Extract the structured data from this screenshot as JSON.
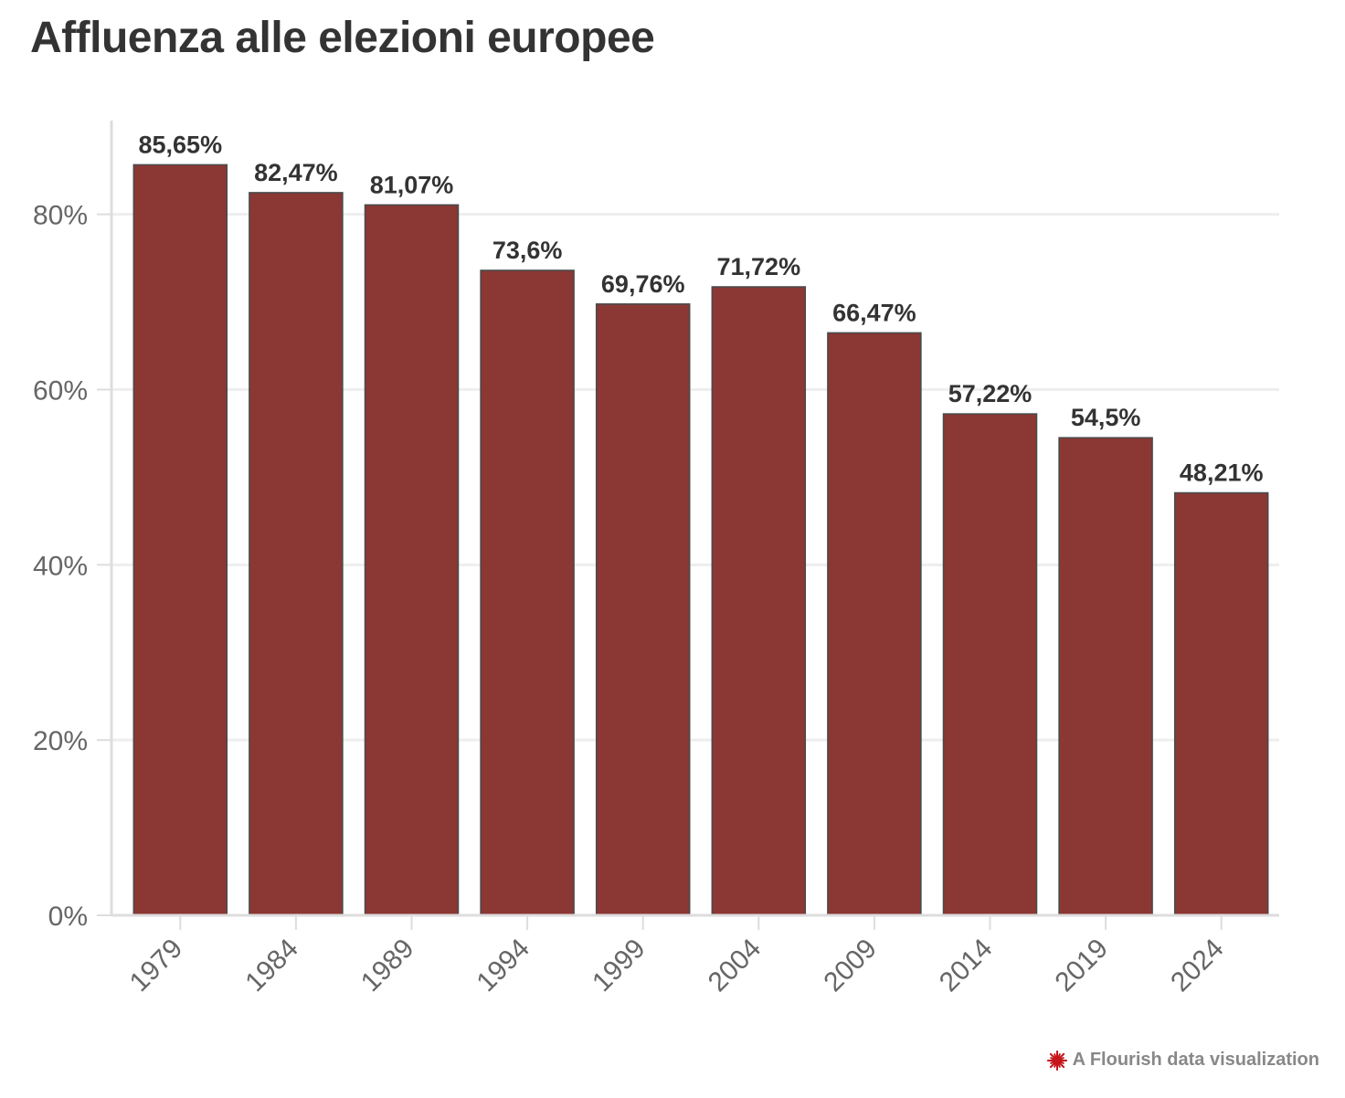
{
  "chart_data": {
    "type": "bar",
    "title": "Affluenza alle elezioni europee",
    "categories": [
      "1979",
      "1984",
      "1989",
      "1994",
      "1999",
      "2004",
      "2009",
      "2014",
      "2019",
      "2024"
    ],
    "values": [
      85.65,
      82.47,
      81.07,
      73.6,
      69.76,
      71.72,
      66.47,
      57.22,
      54.5,
      48.21
    ],
    "data_labels": [
      "85,65%",
      "82,47%",
      "81,07%",
      "73,6%",
      "69,76%",
      "71,72%",
      "66,47%",
      "57,22%",
      "54,5%",
      "48,21%"
    ],
    "y_ticks": [
      0,
      20,
      40,
      60,
      80
    ],
    "y_tick_labels": [
      "0%",
      "20%",
      "40%",
      "60%",
      "80%"
    ],
    "ylim": [
      0,
      90.7
    ],
    "xlabel": "",
    "ylabel": "",
    "grid": true,
    "legend": "none",
    "bar_color": "#8b3734",
    "bar_stroke": "#4a4a4a"
  },
  "credit": {
    "text": "A Flourish data visualization",
    "icon": "flourish-logo-icon",
    "icon_color": "#c4161c"
  }
}
